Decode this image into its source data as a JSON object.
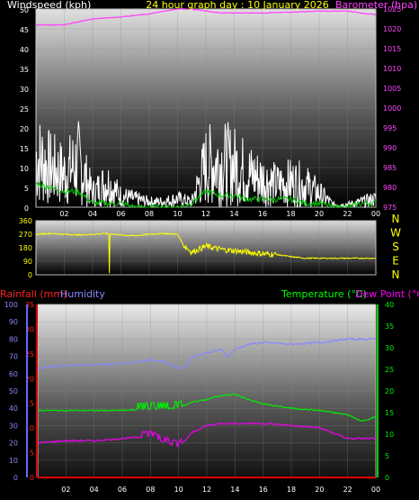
{
  "chart_data": [
    {
      "type": "line",
      "title": "24 hour graph day : 10 January 2026",
      "left_axis_label": "Windspeed (kph)",
      "right_axis_label": "Barometer (hpa)",
      "x_ticks": [
        "02",
        "04",
        "06",
        "08",
        "10",
        "12",
        "14",
        "16",
        "18",
        "20",
        "22",
        "00"
      ],
      "left_ticks": [
        "0",
        "5",
        "10",
        "15",
        "20",
        "25",
        "30",
        "35",
        "40",
        "45",
        "50"
      ],
      "right_ticks": [
        "975",
        "980",
        "985",
        "990",
        "995",
        "1000",
        "1005",
        "1010",
        "1015",
        "1020",
        "1025"
      ],
      "ylim_left": [
        0,
        50
      ],
      "ylim_right": [
        975,
        1025
      ],
      "series": [
        {
          "name": "Windspeed (kph)",
          "color": "#ffffff",
          "style": "spiky",
          "x": [
            0,
            1,
            2,
            3,
            4,
            5,
            6,
            7,
            8,
            9,
            10,
            11,
            12,
            13,
            14,
            15,
            16,
            17,
            18,
            19,
            20,
            21,
            22,
            23,
            24
          ],
          "values": [
            18,
            14,
            12,
            16,
            5,
            9,
            4,
            3,
            2,
            2,
            3,
            2,
            15,
            16,
            15,
            12,
            10,
            8,
            9,
            8,
            5,
            1,
            1,
            2,
            3
          ]
        },
        {
          "name": "Wind gust",
          "color": "#00cc00",
          "x": [
            0,
            1,
            2,
            3,
            4,
            5,
            6,
            7,
            8,
            9,
            10,
            11,
            12,
            13,
            14,
            15,
            16,
            17,
            18,
            19,
            20,
            21,
            22,
            23,
            24
          ],
          "values": [
            6,
            5,
            4,
            4,
            1,
            1,
            1,
            0,
            0,
            0,
            0,
            1,
            4,
            3,
            3,
            2,
            2,
            2,
            2,
            1,
            1,
            0,
            0,
            1,
            1
          ]
        },
        {
          "name": "Barometer (hpa)",
          "color": "#ff44ff",
          "axis": "right",
          "x": [
            0,
            2,
            4,
            6,
            8,
            10,
            11,
            12,
            13,
            14,
            16,
            18,
            20,
            22,
            24
          ],
          "values": [
            1021,
            1021,
            1022.5,
            1023,
            1023.8,
            1025,
            1025,
            1024.5,
            1024,
            1024,
            1024,
            1024.2,
            1024.5,
            1024.5,
            1023.5
          ]
        }
      ]
    },
    {
      "type": "line",
      "title": "",
      "right_labels": [
        "N",
        "W",
        "S",
        "E",
        "N"
      ],
      "left_ticks": [
        "0",
        "90",
        "180",
        "270",
        "360"
      ],
      "ylim": [
        0,
        360
      ],
      "series": [
        {
          "name": "Wind direction",
          "color": "#ffff00",
          "x": [
            0,
            1,
            2,
            3,
            4,
            5,
            6,
            7,
            8,
            9,
            10,
            10.4,
            11,
            12,
            13,
            14,
            15,
            16,
            17,
            18,
            19,
            20,
            21,
            22,
            23,
            24
          ],
          "values": [
            270,
            275,
            270,
            265,
            270,
            275,
            265,
            260,
            270,
            275,
            270,
            200,
            150,
            190,
            170,
            160,
            150,
            140,
            135,
            120,
            110,
            110,
            110,
            110,
            110,
            110
          ]
        }
      ]
    },
    {
      "type": "line",
      "title": "",
      "labels": {
        "rainfall": "Rainfall (mm)",
        "humidity": "Humidity",
        "temperature": "Temperature (°C)",
        "dewpoint": "Dew Point (°C)"
      },
      "x_ticks": [
        "02",
        "04",
        "06",
        "08",
        "10",
        "12",
        "14",
        "16",
        "18",
        "20",
        "22",
        "00"
      ],
      "humidity_ticks": [
        "0",
        "10",
        "20",
        "30",
        "40",
        "50",
        "60",
        "70",
        "80",
        "90",
        "100"
      ],
      "rain_ticks": [
        "0",
        "5",
        "10",
        "15",
        "20",
        "25",
        "30",
        "35"
      ],
      "temp_ticks": [
        "0",
        "5",
        "10",
        "15",
        "20",
        "25",
        "30",
        "35",
        "40"
      ],
      "ylim_humidity": [
        0,
        100
      ],
      "ylim_rain": [
        0,
        35
      ],
      "ylim_temp": [
        0,
        40
      ],
      "series": [
        {
          "name": "Humidity",
          "color": "#8888ff",
          "x": [
            0,
            2,
            4,
            6,
            8,
            9,
            10,
            10.5,
            11,
            12,
            13,
            13.5,
            14,
            15,
            16,
            18,
            20,
            22,
            24
          ],
          "values": [
            63,
            65,
            65,
            66,
            68,
            67,
            63,
            64,
            70,
            72,
            74,
            70,
            74,
            77,
            78,
            77,
            78,
            80,
            80
          ]
        },
        {
          "name": "Temperature (°C)",
          "color": "#00ee00",
          "x": [
            0,
            2,
            4,
            6,
            8,
            10,
            11,
            12,
            13,
            14,
            15,
            16,
            17,
            18,
            20,
            22,
            23,
            24
          ],
          "values": [
            15.5,
            15.5,
            15.5,
            15.5,
            15.8,
            16,
            17.5,
            18,
            19,
            19.2,
            18,
            17,
            16.5,
            16,
            15.5,
            14.5,
            13,
            14
          ]
        },
        {
          "name": "Dew Point (°C)",
          "color": "#ee00ee",
          "x": [
            0,
            2,
            4,
            6,
            8,
            10,
            11,
            12,
            13,
            14,
            16,
            18,
            20,
            22,
            24
          ],
          "values": [
            8,
            8.5,
            8.5,
            9,
            9.5,
            7,
            10.5,
            12,
            12.5,
            12.5,
            12.5,
            12,
            11.5,
            9,
            9
          ]
        },
        {
          "name": "Rainfall (mm)",
          "color": "#dd0000",
          "axis": "rain",
          "x": [
            0,
            24
          ],
          "values": [
            0,
            0
          ]
        }
      ]
    }
  ]
}
